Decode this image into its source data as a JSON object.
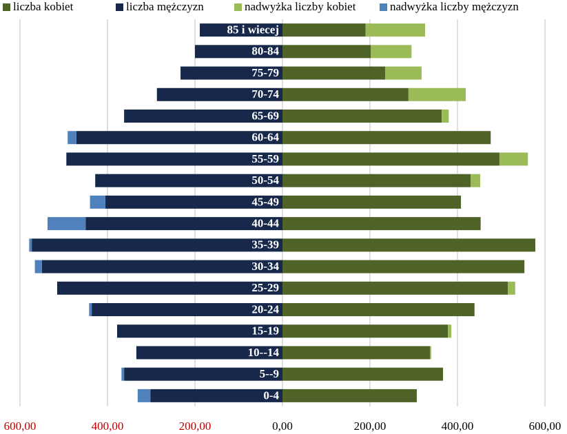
{
  "chart_data": {
    "type": "bar",
    "orientation": "horizontal",
    "stacked": true,
    "categories": [
      "85 i  wiecej",
      "80-84",
      "75-79",
      "70-74",
      "65-69",
      "60-64",
      "55-59",
      "50-54",
      "45-49",
      "40-44",
      "35-39",
      "30-34",
      "25-29",
      "20-24",
      "15-19",
      "10--14",
      "5--9",
      "0-4"
    ],
    "series": [
      {
        "name": "liczba kobiet",
        "color": "#4f6228",
        "values": [
          190,
          202,
          235,
          288,
          364,
          476,
          496,
          430,
          408,
          453,
          578,
          553,
          515,
          439,
          378,
          337,
          367,
          307
        ]
      },
      {
        "name": "liczba mężczyzn",
        "color": "#17284a",
        "values": [
          -189,
          -200,
          -233,
          -287,
          -362,
          -471,
          -494,
          -428,
          -405,
          -450,
          -573,
          -550,
          -515,
          -436,
          -378,
          -334,
          -362,
          -302
        ]
      },
      {
        "name": "nadwyżka liczby kobiet",
        "color": "#9bbb59",
        "values": [
          136,
          93,
          83,
          131,
          16,
          0,
          65,
          22,
          0,
          0,
          0,
          0,
          17,
          0,
          8,
          3,
          0,
          0
        ]
      },
      {
        "name": "nadwyżka liczby mężczyzn",
        "color": "#4f81bd",
        "values": [
          0,
          0,
          0,
          0,
          0,
          -20,
          0,
          0,
          -35,
          -87,
          -6,
          -16,
          0,
          -6,
          0,
          0,
          -6,
          -29
        ]
      }
    ],
    "xlim": [
      -600,
      600
    ],
    "xticks": [
      {
        "value": -600,
        "label": "600,00"
      },
      {
        "value": -400,
        "label": "400,00"
      },
      {
        "value": -200,
        "label": "200,00"
      },
      {
        "value": 0,
        "label": "0,00"
      },
      {
        "value": 200,
        "label": "200,00"
      },
      {
        "value": 400,
        "label": "400,00"
      },
      {
        "value": 600,
        "label": "600,00"
      }
    ],
    "negative_tick_color": "#c00000",
    "grid": true,
    "legend": "top"
  }
}
